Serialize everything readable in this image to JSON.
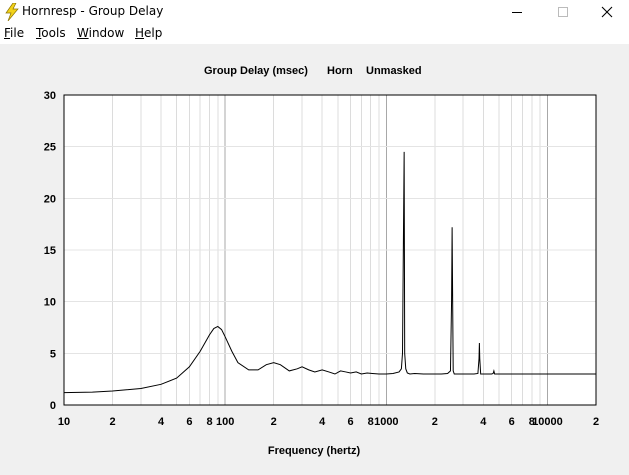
{
  "window": {
    "title": "Hornresp - Group Delay",
    "icon": "lightning-bolt-icon"
  },
  "menu": [
    {
      "label": "File",
      "accel": "F",
      "rest": "ile"
    },
    {
      "label": "Tools",
      "accel": "T",
      "rest": "ools"
    },
    {
      "label": "Window",
      "accel": "W",
      "rest": "indow"
    },
    {
      "label": "Help",
      "accel": "H",
      "rest": "elp"
    }
  ],
  "chart_data": {
    "type": "line",
    "title_parts": [
      "Group Delay (msec)",
      "Horn",
      "Unmasked"
    ],
    "xlabel": "Frequency (hertz)",
    "ylabel": "",
    "x_scale": "log",
    "xlim": [
      10,
      20000
    ],
    "ylim": [
      0,
      30
    ],
    "y_ticks": [
      "0",
      "5",
      "10",
      "15",
      "20",
      "25",
      "30"
    ],
    "x_tick_labels": [
      {
        "f": 10,
        "t": "10"
      },
      {
        "f": 20,
        "t": "2"
      },
      {
        "f": 40,
        "t": "4"
      },
      {
        "f": 60,
        "t": "6"
      },
      {
        "f": 80,
        "t": "8"
      },
      {
        "f": 100,
        "t": "100"
      },
      {
        "f": 200,
        "t": "2"
      },
      {
        "f": 400,
        "t": "4"
      },
      {
        "f": 600,
        "t": "6"
      },
      {
        "f": 800,
        "t": "8"
      },
      {
        "f": 1000,
        "t": "1000"
      },
      {
        "f": 2000,
        "t": "2"
      },
      {
        "f": 4000,
        "t": "4"
      },
      {
        "f": 6000,
        "t": "6"
      },
      {
        "f": 8000,
        "t": "8"
      },
      {
        "f": 10000,
        "t": "10000"
      },
      {
        "f": 20000,
        "t": "2"
      }
    ],
    "grid": true,
    "line_color": "#000000",
    "series": [
      {
        "x": [
          10,
          15,
          20,
          30,
          40,
          50,
          60,
          70,
          80,
          85,
          90,
          95,
          100,
          110,
          120,
          140,
          160,
          180,
          200,
          220,
          250,
          280,
          300,
          330,
          360,
          400,
          440,
          480,
          520,
          560,
          600,
          650,
          700,
          760,
          820,
          900,
          1000,
          1100,
          1200,
          1240,
          1260,
          1275,
          1290,
          1300,
          1320,
          1350,
          1400,
          1500,
          1700,
          2000,
          2200,
          2400,
          2500,
          2540,
          2560,
          2580,
          2600,
          2640,
          2700,
          3000,
          3500,
          3700,
          3760,
          3780,
          3800,
          3850,
          3900,
          4200,
          4500,
          4600,
          4650,
          4700,
          5000,
          7000,
          10000,
          15000,
          20000
        ],
        "y": [
          1.2,
          1.25,
          1.35,
          1.6,
          2.0,
          2.6,
          3.7,
          5.2,
          6.8,
          7.4,
          7.6,
          7.3,
          6.6,
          5.2,
          4.1,
          3.4,
          3.4,
          3.9,
          4.1,
          3.9,
          3.3,
          3.5,
          3.7,
          3.4,
          3.2,
          3.4,
          3.2,
          3.0,
          3.3,
          3.2,
          3.1,
          3.2,
          3.0,
          3.1,
          3.05,
          3.0,
          3.0,
          3.05,
          3.2,
          3.5,
          5.0,
          15.0,
          24.5,
          5.0,
          3.5,
          3.1,
          3.0,
          3.05,
          3.0,
          3.0,
          3.0,
          3.05,
          3.3,
          10.0,
          17.2,
          10.0,
          3.3,
          3.0,
          3.0,
          3.0,
          3.0,
          3.05,
          4.5,
          6.0,
          4.5,
          3.0,
          3.0,
          3.0,
          3.0,
          3.05,
          3.3,
          3.0,
          3.0,
          3.0,
          3.0,
          3.0,
          3.0
        ]
      }
    ]
  }
}
